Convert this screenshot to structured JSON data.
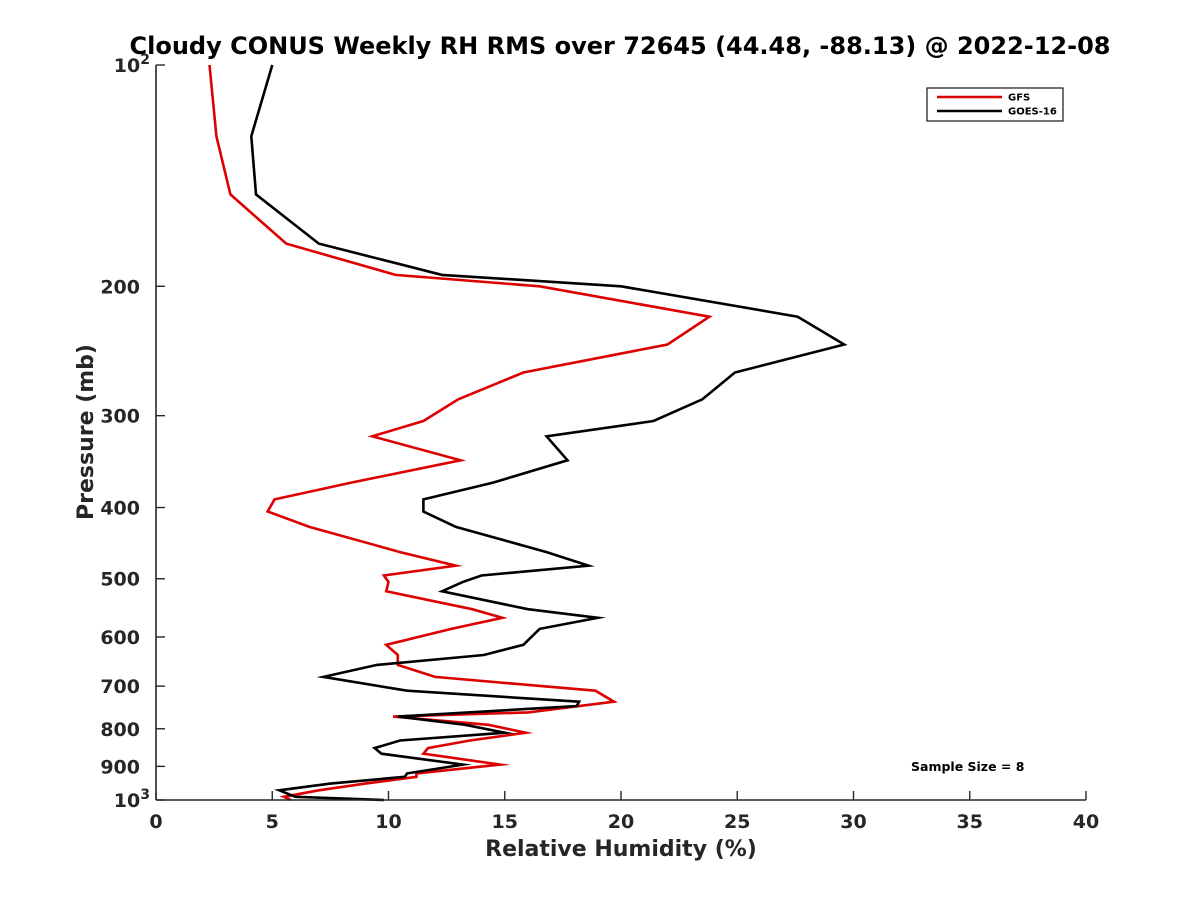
{
  "chart_data": {
    "type": "line",
    "title": "Cloudy CONUS Weekly RH RMS over 72645 (44.48, -88.13) @ 2022-12-08",
    "xlabel": "Relative Humidity (%)",
    "ylabel": "Pressure (mb)",
    "xlim": [
      0,
      40
    ],
    "ylim": [
      1000,
      100
    ],
    "yscale": "log",
    "x_ticks": [
      0,
      5,
      10,
      15,
      20,
      25,
      30,
      35,
      40
    ],
    "y_ticks": [
      {
        "value": 100,
        "base": "10",
        "exp": "2"
      },
      {
        "value": 200,
        "label": "200"
      },
      {
        "value": 300,
        "label": "300"
      },
      {
        "value": 400,
        "label": "400"
      },
      {
        "value": 500,
        "label": "500"
      },
      {
        "value": 600,
        "label": "600"
      },
      {
        "value": 700,
        "label": "700"
      },
      {
        "value": 800,
        "label": "800"
      },
      {
        "value": 900,
        "label": "900"
      },
      {
        "value": 1000,
        "base": "10",
        "exp": "3"
      }
    ],
    "grid": false,
    "legend_position": "top-right",
    "annotation": "Sample Size = 8",
    "series": [
      {
        "name": "GFS",
        "color": "#dd0000",
        "points": [
          [
            2.3,
            100
          ],
          [
            2.6,
            125
          ],
          [
            3.2,
            150
          ],
          [
            5.6,
            175
          ],
          [
            10.3,
            193
          ],
          [
            16.5,
            200
          ],
          [
            23.8,
            220
          ],
          [
            22.0,
            240
          ],
          [
            15.8,
            262
          ],
          [
            13.0,
            285
          ],
          [
            11.5,
            305
          ],
          [
            9.3,
            320
          ],
          [
            13.1,
            345
          ],
          [
            8.4,
            370
          ],
          [
            5.1,
            390
          ],
          [
            4.8,
            405
          ],
          [
            6.6,
            425
          ],
          [
            10.5,
            460
          ],
          [
            12.9,
            480
          ],
          [
            9.8,
            495
          ],
          [
            10.0,
            505
          ],
          [
            9.9,
            520
          ],
          [
            13.6,
            550
          ],
          [
            14.9,
            565
          ],
          [
            12.7,
            585
          ],
          [
            9.9,
            615
          ],
          [
            10.4,
            635
          ],
          [
            10.4,
            655
          ],
          [
            12.0,
            680
          ],
          [
            18.9,
            710
          ],
          [
            19.7,
            735
          ],
          [
            16.0,
            760
          ],
          [
            10.2,
            770
          ],
          [
            14.3,
            790
          ],
          [
            15.9,
            810
          ],
          [
            13.5,
            830
          ],
          [
            11.7,
            850
          ],
          [
            11.5,
            865
          ],
          [
            14.8,
            895
          ],
          [
            11.2,
            920
          ],
          [
            11.2,
            930
          ],
          [
            9.0,
            950
          ],
          [
            7.0,
            970
          ],
          [
            5.5,
            990
          ],
          [
            5.8,
            1000
          ]
        ]
      },
      {
        "name": "GOES-16",
        "color": "#000000",
        "points": [
          [
            5.0,
            100
          ],
          [
            4.1,
            125
          ],
          [
            4.3,
            150
          ],
          [
            7.0,
            175
          ],
          [
            12.3,
            193
          ],
          [
            20.0,
            200
          ],
          [
            27.6,
            220
          ],
          [
            29.6,
            240
          ],
          [
            24.9,
            262
          ],
          [
            23.5,
            285
          ],
          [
            21.4,
            305
          ],
          [
            16.8,
            320
          ],
          [
            17.7,
            345
          ],
          [
            14.5,
            370
          ],
          [
            11.5,
            390
          ],
          [
            11.5,
            405
          ],
          [
            12.9,
            425
          ],
          [
            16.8,
            460
          ],
          [
            18.6,
            480
          ],
          [
            14.0,
            495
          ],
          [
            13.2,
            505
          ],
          [
            12.3,
            520
          ],
          [
            16.0,
            550
          ],
          [
            19.0,
            565
          ],
          [
            16.5,
            585
          ],
          [
            15.8,
            615
          ],
          [
            14.1,
            635
          ],
          [
            9.5,
            655
          ],
          [
            7.2,
            680
          ],
          [
            10.8,
            710
          ],
          [
            18.2,
            735
          ],
          [
            18.1,
            745
          ],
          [
            10.4,
            770
          ],
          [
            13.3,
            790
          ],
          [
            15.0,
            810
          ],
          [
            10.5,
            830
          ],
          [
            9.4,
            850
          ],
          [
            9.7,
            865
          ],
          [
            13.2,
            895
          ],
          [
            10.8,
            920
          ],
          [
            10.7,
            930
          ],
          [
            7.5,
            950
          ],
          [
            5.3,
            970
          ],
          [
            6.0,
            990
          ],
          [
            9.8,
            1000
          ]
        ]
      }
    ]
  }
}
